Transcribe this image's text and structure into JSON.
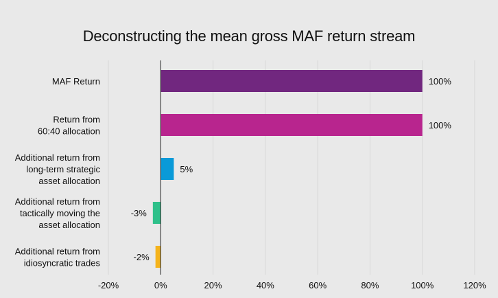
{
  "chart_data": {
    "type": "bar",
    "orientation": "horizontal",
    "title": "Deconstructing the mean gross MAF return stream",
    "categories": [
      "MAF Return",
      "Return from 60:40 allocation",
      "Additional return from long-term strategic asset allocation",
      "Additional return from tactically moving the asset allocation",
      "Additional return from idiosyncratic trades"
    ],
    "category_label_lines": [
      [
        "MAF Return"
      ],
      [
        "Return from",
        "60:40 allocation"
      ],
      [
        "Additional return from",
        "long-term strategic",
        "asset allocation"
      ],
      [
        "Additional return from",
        "tactically moving the",
        "asset allocation"
      ],
      [
        "Additional return from",
        "idiosyncratic trades"
      ]
    ],
    "values": [
      100,
      100,
      5,
      -3,
      -2
    ],
    "data_labels": [
      "100%",
      "100%",
      "5%",
      "-3%",
      "-2%"
    ],
    "colors": [
      "#71277f",
      "#b8258e",
      "#0a9ad8",
      "#2ec08a",
      "#f5b31c"
    ],
    "xlim": [
      -20,
      120
    ],
    "xticks": [
      -20,
      0,
      20,
      40,
      60,
      80,
      100,
      120
    ],
    "xtick_labels": [
      "-20%",
      "0%",
      "20%",
      "40%",
      "60%",
      "80%",
      "100%",
      "120%"
    ],
    "grid": true,
    "xlabel": "",
    "ylabel": ""
  }
}
